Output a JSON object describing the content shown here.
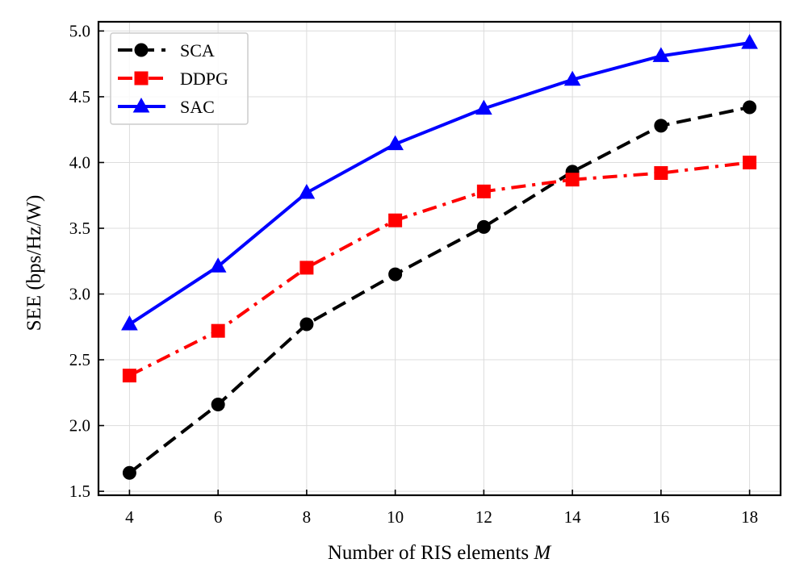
{
  "chart_data": {
    "type": "line",
    "title": "",
    "xlabel": "Number of RIS elements",
    "xlabel_var": "M",
    "ylabel": "SEE (bps/Hz/W)",
    "xlim": [
      3.3,
      18.7
    ],
    "ylim": [
      1.47,
      5.07
    ],
    "x": [
      4,
      6,
      8,
      10,
      12,
      14,
      16,
      18
    ],
    "xticks": [
      "4",
      "6",
      "8",
      "10",
      "12",
      "14",
      "16",
      "18"
    ],
    "yticks": [
      "1.5",
      "2.0",
      "2.5",
      "3.0",
      "3.5",
      "4.0",
      "4.5",
      "5.0"
    ],
    "grid": true,
    "legend_position": "top-left",
    "series": [
      {
        "name": "SCA",
        "color": "#000000",
        "linestyle": "dashed",
        "marker": "circle",
        "values": [
          1.64,
          2.16,
          2.77,
          3.15,
          3.51,
          3.93,
          4.28,
          4.42
        ]
      },
      {
        "name": "DDPG",
        "color": "#ff0000",
        "linestyle": "dashdot",
        "marker": "square",
        "values": [
          2.38,
          2.72,
          3.2,
          3.56,
          3.78,
          3.87,
          3.92,
          4.0
        ]
      },
      {
        "name": "SAC",
        "color": "#0000ff",
        "linestyle": "solid",
        "marker": "triangle",
        "values": [
          2.77,
          3.21,
          3.77,
          4.14,
          4.41,
          4.63,
          4.81,
          4.91
        ]
      }
    ]
  }
}
